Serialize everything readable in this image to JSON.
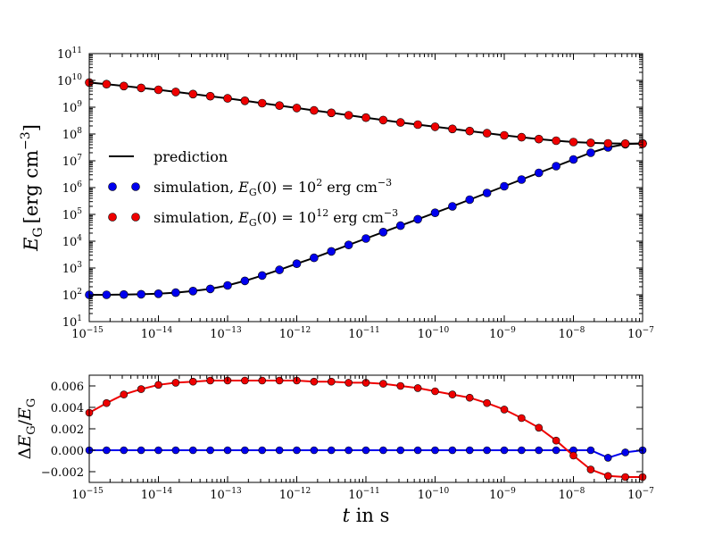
{
  "chart_data": [
    {
      "type": "line",
      "panel": "top",
      "x_scale": "log",
      "y_scale": "log",
      "xlim": [
        1e-15,
        1e-07
      ],
      "ylim": [
        10,
        100000000000.0
      ],
      "ylabel": {
        "var": "E",
        "sub": "G",
        "unit": "[erg cm",
        "unit_exp": "−3",
        "unit_close": "]"
      },
      "xticks": [
        -15,
        -14,
        -13,
        -12,
        -11,
        -10,
        -9,
        -8,
        -7
      ],
      "yticks": [
        1,
        2,
        3,
        4,
        5,
        6,
        7,
        8,
        9,
        10,
        11
      ],
      "tick_base": "10",
      "legend": {
        "placement": "center-left",
        "entries": [
          {
            "label": "prediction",
            "kind": "line",
            "color": "#000000"
          },
          {
            "label_prefix": "simulation, ",
            "var": "E",
            "sub": "G",
            "mid": "(0) = 10",
            "exp": "2",
            "unit": " erg cm",
            "unit_exp": "−3",
            "kind": "marker",
            "color": "#0000ee"
          },
          {
            "label_prefix": "simulation, ",
            "var": "E",
            "sub": "G",
            "mid": "(0) = 10",
            "exp": "12",
            "unit": " erg cm",
            "unit_exp": "−3",
            "kind": "marker",
            "color": "#ee0000"
          }
        ]
      },
      "series": [
        {
          "name": "prediction (from 10^2)",
          "color": "#000000",
          "x_log": [
            -15,
            -14.75,
            -14.5,
            -14.25,
            -14,
            -13.75,
            -13.5,
            -13.25,
            -13,
            -12.75,
            -12.5,
            -12.25,
            -12,
            -11.75,
            -11.5,
            -11.25,
            -11,
            -10.75,
            -10.5,
            -10.25,
            -10,
            -9.75,
            -9.5,
            -9.25,
            -9,
            -8.75,
            -8.5,
            -8.25,
            -8,
            -7.75,
            -7.5,
            -7.25,
            -7
          ],
          "y_log": [
            2.0,
            2.0,
            2.01,
            2.02,
            2.04,
            2.08,
            2.14,
            2.22,
            2.35,
            2.52,
            2.72,
            2.93,
            3.16,
            3.38,
            3.62,
            3.86,
            4.1,
            4.34,
            4.58,
            4.82,
            5.06,
            5.3,
            5.55,
            5.8,
            6.05,
            6.3,
            6.55,
            6.8,
            7.05,
            7.3,
            7.5,
            7.62,
            7.65
          ]
        },
        {
          "name": "prediction (from 10^12)",
          "color": "#000000",
          "x_log": [
            -15,
            -14.75,
            -14.5,
            -14.25,
            -14,
            -13.75,
            -13.5,
            -13.25,
            -13,
            -12.75,
            -12.5,
            -12.25,
            -12,
            -11.75,
            -11.5,
            -11.25,
            -11,
            -10.75,
            -10.5,
            -10.25,
            -10,
            -9.75,
            -9.5,
            -9.25,
            -9,
            -8.75,
            -8.5,
            -8.25,
            -8,
            -7.75,
            -7.5,
            -7.25,
            -7
          ],
          "y_log": [
            9.92,
            9.86,
            9.79,
            9.72,
            9.65,
            9.57,
            9.49,
            9.41,
            9.33,
            9.24,
            9.15,
            9.06,
            8.97,
            8.88,
            8.79,
            8.7,
            8.61,
            8.52,
            8.43,
            8.35,
            8.27,
            8.19,
            8.11,
            8.03,
            7.95,
            7.88,
            7.81,
            7.75,
            7.7,
            7.67,
            7.65,
            7.64,
            7.64
          ]
        },
        {
          "name": "simulation, E_G(0) = 10^2 erg cm^-3",
          "color": "#0000ee",
          "marker": true,
          "x_log": [
            -15,
            -14.75,
            -14.5,
            -14.25,
            -14,
            -13.75,
            -13.5,
            -13.25,
            -13,
            -12.75,
            -12.5,
            -12.25,
            -12,
            -11.75,
            -11.5,
            -11.25,
            -11,
            -10.75,
            -10.5,
            -10.25,
            -10,
            -9.75,
            -9.5,
            -9.25,
            -9,
            -8.75,
            -8.5,
            -8.25,
            -8,
            -7.75,
            -7.5,
            -7.25,
            -7
          ],
          "y_log": [
            2.0,
            2.0,
            2.01,
            2.02,
            2.04,
            2.08,
            2.14,
            2.22,
            2.35,
            2.52,
            2.72,
            2.93,
            3.16,
            3.38,
            3.62,
            3.86,
            4.1,
            4.34,
            4.58,
            4.82,
            5.06,
            5.3,
            5.55,
            5.8,
            6.05,
            6.3,
            6.55,
            6.8,
            7.05,
            7.3,
            7.5,
            7.62,
            7.65
          ]
        },
        {
          "name": "simulation, E_G(0) = 10^12 erg cm^-3",
          "color": "#ee0000",
          "marker": true,
          "x_log": [
            -15,
            -14.75,
            -14.5,
            -14.25,
            -14,
            -13.75,
            -13.5,
            -13.25,
            -13,
            -12.75,
            -12.5,
            -12.25,
            -12,
            -11.75,
            -11.5,
            -11.25,
            -11,
            -10.75,
            -10.5,
            -10.25,
            -10,
            -9.75,
            -9.5,
            -9.25,
            -9,
            -8.75,
            -8.5,
            -8.25,
            -8,
            -7.75,
            -7.5,
            -7.25,
            -7
          ],
          "y_log": [
            9.92,
            9.86,
            9.79,
            9.72,
            9.65,
            9.57,
            9.49,
            9.41,
            9.33,
            9.24,
            9.15,
            9.06,
            8.97,
            8.88,
            8.79,
            8.7,
            8.61,
            8.52,
            8.43,
            8.35,
            8.27,
            8.19,
            8.11,
            8.03,
            7.95,
            7.88,
            7.81,
            7.75,
            7.7,
            7.67,
            7.65,
            7.64,
            7.64
          ]
        }
      ]
    },
    {
      "type": "line",
      "panel": "bottom",
      "x_scale": "log",
      "y_scale": "linear",
      "xlim": [
        1e-15,
        1e-07
      ],
      "ylim": [
        -0.003,
        0.007
      ],
      "xlabel": {
        "var": "t",
        "rest": " in s"
      },
      "ylabel": {
        "delta": "Δ",
        "var": "E",
        "sub": "G",
        "slash": "/",
        "var2": "E",
        "sub2": "G"
      },
      "xticks": [
        -15,
        -14,
        -13,
        -12,
        -11,
        -10,
        -9,
        -8,
        -7
      ],
      "yticks": [
        -0.002,
        0.0,
        0.002,
        0.004,
        0.006
      ],
      "ytick_labels": [
        "−0.002",
        "0.000",
        "0.002",
        "0.004",
        "0.006"
      ],
      "tick_base": "10",
      "series": [
        {
          "name": "relative error, E_G(0) = 10^2",
          "color": "#0000ee",
          "x_log": [
            -15,
            -14.75,
            -14.5,
            -14.25,
            -14,
            -13.75,
            -13.5,
            -13.25,
            -13,
            -12.75,
            -12.5,
            -12.25,
            -12,
            -11.75,
            -11.5,
            -11.25,
            -11,
            -10.75,
            -10.5,
            -10.25,
            -10,
            -9.75,
            -9.5,
            -9.25,
            -9,
            -8.75,
            -8.5,
            -8.25,
            -8,
            -7.75,
            -7.5,
            -7.25,
            -7
          ],
          "y": [
            0,
            0,
            0,
            0,
            0,
            0,
            0,
            0,
            0,
            0,
            0,
            0,
            0,
            0,
            0,
            0,
            0,
            0,
            0,
            0,
            0,
            0,
            0,
            0,
            0,
            0,
            0,
            0,
            0,
            0,
            -0.0007,
            -0.0002,
            0
          ]
        },
        {
          "name": "relative error, E_G(0) = 10^12",
          "color": "#ee0000",
          "x_log": [
            -15,
            -14.75,
            -14.5,
            -14.25,
            -14,
            -13.75,
            -13.5,
            -13.25,
            -13,
            -12.75,
            -12.5,
            -12.25,
            -12,
            -11.75,
            -11.5,
            -11.25,
            -11,
            -10.75,
            -10.5,
            -10.25,
            -10,
            -9.75,
            -9.5,
            -9.25,
            -9,
            -8.75,
            -8.5,
            -8.25,
            -8,
            -7.75,
            -7.5,
            -7.25,
            -7
          ],
          "y": [
            0.0035,
            0.0044,
            0.0052,
            0.0057,
            0.0061,
            0.0063,
            0.0064,
            0.0065,
            0.0065,
            0.0065,
            0.0065,
            0.0065,
            0.0065,
            0.0064,
            0.0064,
            0.0063,
            0.0063,
            0.0062,
            0.006,
            0.0058,
            0.0055,
            0.0052,
            0.0049,
            0.0044,
            0.0038,
            0.003,
            0.0021,
            0.0009,
            -0.0005,
            -0.0018,
            -0.0024,
            -0.0025,
            -0.0025
          ]
        }
      ]
    }
  ]
}
